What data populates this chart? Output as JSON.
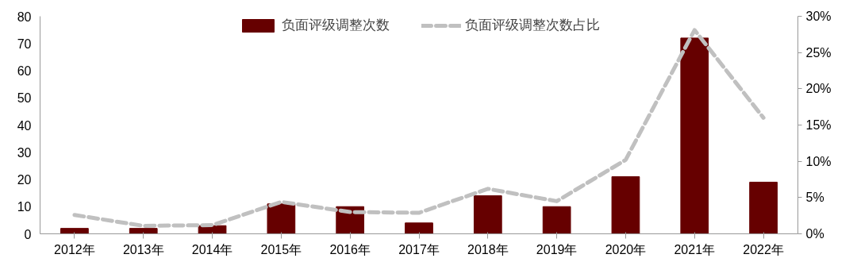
{
  "chart_data": {
    "type": "bar",
    "categories": [
      "2012年",
      "2013年",
      "2014年",
      "2015年",
      "2016年",
      "2017年",
      "2018年",
      "2019年",
      "2020年",
      "2021年",
      "2022年"
    ],
    "series": [
      {
        "name": "负面评级调整次数",
        "color": "#660000",
        "values": [
          2,
          2,
          3,
          11,
          10,
          4,
          14,
          10,
          21,
          72,
          19
        ]
      },
      {
        "name": "负面评级调整次数占比",
        "type": "line",
        "axis": "y2",
        "color": "#c0c0c0",
        "line_style": "dashed",
        "values": [
          2.6,
          1.1,
          1.2,
          4.4,
          3.0,
          2.9,
          6.2,
          4.5,
          10.2,
          28.1,
          16.0
        ]
      }
    ],
    "ylim": [
      0,
      80
    ],
    "yticks": [
      0,
      10,
      20,
      30,
      40,
      50,
      60,
      70,
      80
    ],
    "y2lim": [
      0,
      30
    ],
    "y2ticks": [
      {
        "value": 0,
        "label": "0%"
      },
      {
        "value": 5,
        "label": "5%"
      },
      {
        "value": 10,
        "label": "10%"
      },
      {
        "value": 15,
        "label": "15%"
      },
      {
        "value": 20,
        "label": "20%"
      },
      {
        "value": 25,
        "label": "25%"
      },
      {
        "value": 30,
        "label": "30%"
      }
    ],
    "grid": false,
    "legend": "top"
  }
}
